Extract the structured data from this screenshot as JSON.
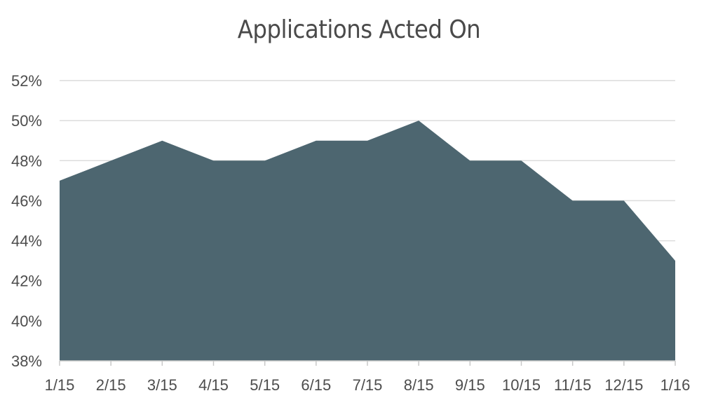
{
  "chart_data": {
    "type": "area",
    "title": "Applications Acted On",
    "xlabel": "",
    "ylabel": "",
    "categories": [
      "1/15",
      "2/15",
      "3/15",
      "4/15",
      "5/15",
      "6/15",
      "7/15",
      "8/15",
      "9/15",
      "10/15",
      "11/15",
      "12/15",
      "1/16"
    ],
    "series": [
      {
        "values": [
          47,
          48,
          49,
          48,
          48,
          49,
          49,
          50,
          48,
          48,
          46,
          46,
          43
        ]
      }
    ],
    "ylim": [
      38,
      52
    ],
    "yticks": [
      38,
      40,
      42,
      44,
      46,
      48,
      50,
      52
    ],
    "ytick_suffix": "%",
    "grid": true,
    "legend": "none",
    "colors": {
      "area_fill": "#4d6670",
      "gridline": "#dcdcdc",
      "text": "#4d4d4d"
    }
  }
}
